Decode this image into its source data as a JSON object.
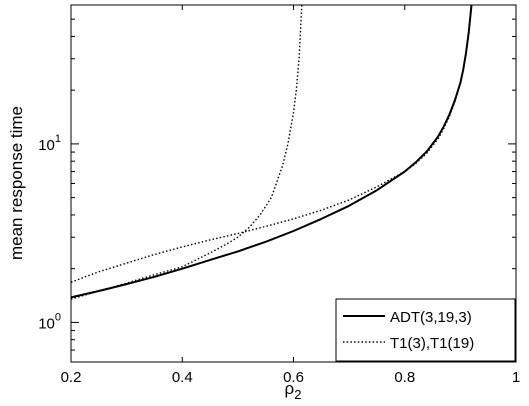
{
  "chart_data": {
    "type": "line",
    "xlabel": "ρ",
    "xlabel_sub": "2",
    "ylabel": "mean response time",
    "y_scale": "log",
    "xlim": [
      0.2,
      1.0
    ],
    "ylim": [
      0.6,
      60
    ],
    "x_ticks": [
      {
        "value": 0.2,
        "label": "0.2"
      },
      {
        "value": 0.4,
        "label": "0.4"
      },
      {
        "value": 0.6,
        "label": "0.6"
      },
      {
        "value": 0.8,
        "label": "0.8"
      },
      {
        "value": 1.0,
        "label": "1"
      }
    ],
    "y_ticks": [
      {
        "value": 1,
        "base": "10",
        "exp": "0"
      },
      {
        "value": 10,
        "base": "10",
        "exp": "1"
      }
    ],
    "grid": false,
    "legend_position": "bottom-right",
    "series": [
      {
        "name": "ADT(3,19,3)",
        "style": "solid",
        "color": "#000000",
        "x": [
          0.2,
          0.25,
          0.3,
          0.35,
          0.4,
          0.45,
          0.5,
          0.55,
          0.6,
          0.65,
          0.7,
          0.75,
          0.8,
          0.82,
          0.84,
          0.86,
          0.87,
          0.88,
          0.89,
          0.9,
          0.905,
          0.91,
          0.915,
          0.92
        ],
        "y": [
          1.38,
          1.5,
          1.64,
          1.8,
          2.0,
          2.24,
          2.5,
          2.83,
          3.25,
          3.8,
          4.5,
          5.5,
          7.0,
          7.9,
          9.1,
          11.0,
          12.5,
          14.5,
          17.5,
          22.0,
          26.0,
          32.0,
          42.0,
          60.0
        ]
      },
      {
        "name": "T1(3),T1(19)",
        "style": "dotted",
        "color": "#000000",
        "x": [
          0.2,
          0.25,
          0.3,
          0.35,
          0.4,
          0.45,
          0.48,
          0.5,
          0.52,
          0.54,
          0.56,
          0.58,
          0.59,
          0.6,
          0.605,
          0.61,
          0.615
        ],
        "y": [
          1.35,
          1.5,
          1.66,
          1.85,
          2.05,
          2.45,
          2.75,
          3.0,
          3.4,
          4.0,
          5.0,
          7.5,
          10.0,
          15.0,
          20.0,
          30.0,
          60.0
        ]
      },
      {
        "name": "",
        "style": "dotted",
        "color": "#000000",
        "x": [
          0.2,
          0.25,
          0.3,
          0.35,
          0.4,
          0.45,
          0.5,
          0.55,
          0.6,
          0.65,
          0.7,
          0.75,
          0.8,
          0.82,
          0.84,
          0.86,
          0.87,
          0.88,
          0.89,
          0.9,
          0.905,
          0.91,
          0.915,
          0.92
        ],
        "y": [
          1.68,
          1.92,
          2.15,
          2.4,
          2.65,
          2.9,
          3.15,
          3.45,
          3.8,
          4.25,
          4.85,
          5.75,
          7.0,
          7.8,
          8.9,
          10.7,
          12.2,
          14.2,
          17.2,
          21.8,
          25.8,
          31.8,
          41.5,
          60.0
        ]
      }
    ]
  }
}
